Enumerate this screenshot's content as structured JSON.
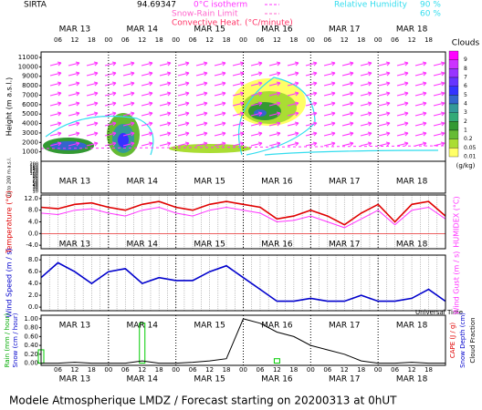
{
  "header": {
    "site": "SIRTA",
    "coords": "94.69347",
    "isotherm": "0°C isotherm",
    "snow_rain": "Snow-Rain Limit",
    "convective": "Convective Heat. (°C/minute)",
    "rh": "Relative Humidity",
    "rh_levels": [
      "90 %",
      "60 %"
    ]
  },
  "time_axis": {
    "days": [
      "MAR 13",
      "MAR 14",
      "MAR 15",
      "MAR 16",
      "MAR 17",
      "MAR 18"
    ],
    "hours": [
      "06",
      "12",
      "18",
      "00"
    ],
    "label": "Universal Time"
  },
  "chart_data": [
    {
      "type": "contour",
      "ylabel": "Height (m a.s.l.)",
      "ylabel2": "Up to 200 m a.s.l.",
      "ylim": [
        0,
        11000
      ],
      "yticks": [
        1000,
        2000,
        3000,
        4000,
        5000,
        6000,
        7000,
        8000,
        9000,
        10000,
        11000
      ],
      "low_yticks": [
        200,
        180,
        160,
        140,
        120,
        100,
        90,
        80,
        70,
        60,
        50,
        40,
        30,
        20,
        10
      ],
      "colorbar": {
        "title": "Clouds",
        "unit": "(g/kg)",
        "levels": [
          9,
          8,
          7,
          6,
          5,
          4,
          3,
          2,
          1,
          0.2,
          0.05,
          0.01
        ],
        "colors": [
          "#ff00ff",
          "#cc33ff",
          "#9933ff",
          "#6633ff",
          "#3333ff",
          "#3366cc",
          "#339999",
          "#33aa77",
          "#339933",
          "#66bb33",
          "#aadd33",
          "#ffff66"
        ]
      }
    },
    {
      "type": "line",
      "ylabel": "Temperature (°C)",
      "ylabel2": "HUMIDEX (°C)",
      "xlim": [
        0,
        144
      ],
      "x": [
        0,
        6,
        12,
        18,
        24,
        30,
        36,
        42,
        48,
        54,
        60,
        66,
        72,
        78,
        84,
        90,
        96,
        102,
        108,
        114,
        120,
        126,
        132,
        138,
        144
      ],
      "ylim": [
        -5.2,
        13.2
      ],
      "yticks": [
        {
          "value": 12,
          "label": "12.0"
        },
        {
          "value": 8,
          "label": "8.0"
        },
        {
          "value": 4,
          "label": "4.0"
        },
        {
          "value": 0,
          "label": "0.0"
        },
        {
          "value": -4,
          "label": "-4.0"
        }
      ],
      "series": [
        {
          "name": "Temperature",
          "color": "#e00000",
          "values": [
            9,
            8.5,
            10,
            10.5,
            9,
            8,
            10,
            11,
            9,
            8,
            10,
            11,
            10,
            9,
            5,
            6,
            8,
            6,
            3,
            7,
            10,
            4,
            10,
            11,
            6
          ]
        },
        {
          "name": "HUMIDEX",
          "color": "#ff33ff",
          "values": [
            7,
            6.5,
            8,
            8.5,
            7,
            6,
            8,
            9,
            7,
            6,
            8,
            9,
            8,
            7,
            4,
            4.5,
            6,
            4,
            2,
            5,
            8,
            3,
            8,
            9,
            5
          ]
        }
      ]
    },
    {
      "type": "line",
      "ylabel": "Wind Speed (m / s)",
      "ylabel2": "Wind Gust (m / s)",
      "xlim": [
        0,
        144
      ],
      "x": [
        0,
        6,
        12,
        18,
        24,
        30,
        36,
        42,
        48,
        54,
        60,
        66,
        72,
        78,
        84,
        90,
        96,
        102,
        108,
        114,
        120,
        126,
        132,
        138,
        144
      ],
      "ylim": [
        -0.6,
        8.8
      ],
      "yticks": [
        {
          "value": 8,
          "label": "8.0"
        },
        {
          "value": 6,
          "label": "6.0"
        },
        {
          "value": 4,
          "label": "4.0"
        },
        {
          "value": 2,
          "label": "2.0"
        },
        {
          "value": 0,
          "label": "0.0"
        }
      ],
      "series": [
        {
          "name": "Wind Speed",
          "color": "#0000cc",
          "values": [
            5,
            7.5,
            6,
            4,
            6,
            6.5,
            4,
            5,
            4.5,
            4.5,
            6,
            7,
            5,
            3,
            1,
            1,
            1.5,
            1,
            1,
            2,
            1,
            1,
            1.5,
            3,
            1
          ]
        }
      ]
    },
    {
      "type": "bar-line",
      "ylabel": "Rain (mm / hour)",
      "ylabel_b": "Snow (cm / hour)",
      "ylabel2": "CAPE (J / g)",
      "ylabel2_b": "Snow Depth (cm)",
      "ylabel2_c": "Cloud Fraction",
      "xlim": [
        0,
        144
      ],
      "x": [
        0,
        6,
        12,
        18,
        24,
        30,
        36,
        42,
        48,
        54,
        60,
        66,
        72,
        78,
        84,
        90,
        96,
        102,
        108,
        114,
        120,
        126,
        132,
        138,
        144
      ],
      "ylim": [
        -0.05,
        1.08
      ],
      "yticks": [
        {
          "value": 1,
          "label": "1.00"
        },
        {
          "value": 0.8,
          "label": "0.80"
        },
        {
          "value": 0.6,
          "label": "0.60"
        },
        {
          "value": 0.4,
          "label": "0.40"
        },
        {
          "value": 0.2,
          "label": "0.20"
        },
        {
          "value": 0,
          "label": "0.00"
        }
      ],
      "series": [
        {
          "name": "Rain",
          "color": "#00cc00",
          "values": [
            0.3,
            0,
            0,
            0,
            0,
            0,
            0.9,
            0,
            0,
            0,
            0,
            0,
            0,
            0,
            0.1,
            0,
            0,
            0,
            0,
            0,
            0,
            0,
            0,
            0,
            0
          ]
        },
        {
          "name": "Cloud Fraction",
          "color": "#000000",
          "values": [
            0,
            0,
            0.02,
            0,
            0,
            0,
            0.05,
            0,
            0,
            0.02,
            0.05,
            0.1,
            1,
            0.9,
            0.7,
            0.6,
            0.4,
            0.3,
            0.2,
            0.05,
            0,
            0,
            0.02,
            0,
            0
          ]
        }
      ]
    }
  ],
  "footer": "Modele Atmospherique LMDZ / Forecast starting on 20200313 at 0hUT"
}
